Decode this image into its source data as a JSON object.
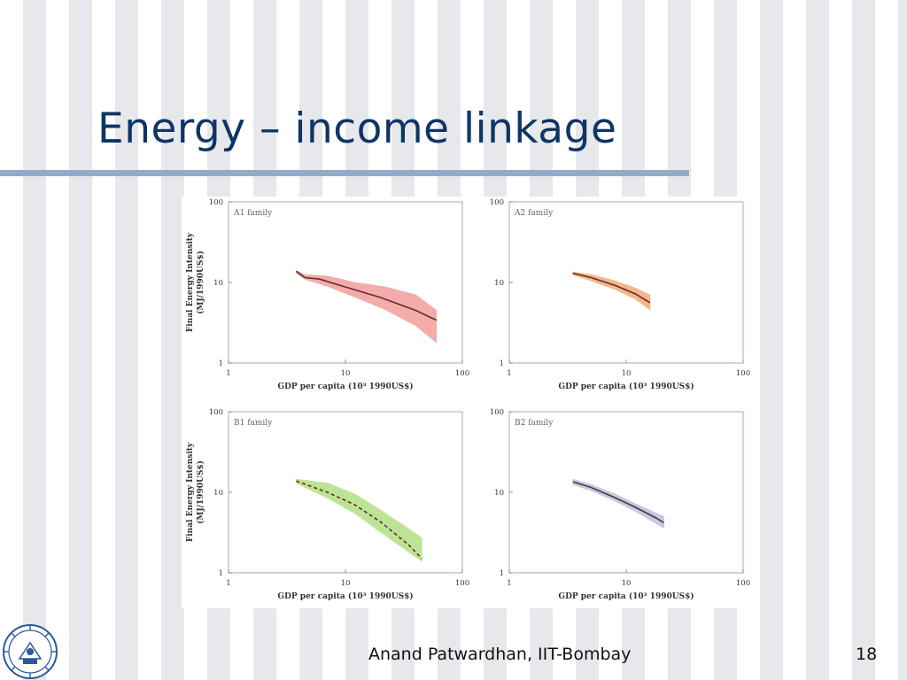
{
  "slide": {
    "title": "Energy – income linkage",
    "footer": "Anand Patwardhan, IIT-Bombay",
    "page_number": "18"
  },
  "logo": {
    "icon": "iit-bombay-seal-icon",
    "color": "#2a5a9a"
  },
  "colors": {
    "title": "#0f3566",
    "rule": "#93abc8",
    "line": "#6b2a2a"
  },
  "chart_data": [
    {
      "type": "area",
      "family_label": "A1 family",
      "xlabel": "GDP per capita (10³ 1990US$)",
      "ylabel": "Final Energy Intensity (MJ/1990US$)",
      "xscale": "log",
      "yscale": "log",
      "xlim": [
        1,
        100
      ],
      "ylim": [
        1,
        100
      ],
      "xticks": [
        "1",
        "10",
        "100"
      ],
      "yticks": [
        "1",
        "10",
        "100"
      ],
      "band_color": "#f2a3a3",
      "line_color": "#6b2a2a",
      "line_style": "solid",
      "band_upper": [
        [
          3.8,
          14
        ],
        [
          4.5,
          12.5
        ],
        [
          7,
          12
        ],
        [
          12,
          10
        ],
        [
          22,
          8.8
        ],
        [
          40,
          7
        ],
        [
          60,
          4.5
        ]
      ],
      "band_lower": [
        [
          3.8,
          13
        ],
        [
          4.5,
          11
        ],
        [
          7,
          9
        ],
        [
          12,
          6.6
        ],
        [
          22,
          4.6
        ],
        [
          40,
          2.9
        ],
        [
          60,
          1.8
        ]
      ],
      "median": [
        [
          3.8,
          13.8
        ],
        [
          4.5,
          11.5
        ],
        [
          6,
          11
        ],
        [
          10,
          8.8
        ],
        [
          20,
          6.5
        ],
        [
          40,
          4.5
        ],
        [
          60,
          3.4
        ]
      ]
    },
    {
      "type": "area",
      "family_label": "A2 family",
      "xlabel": "GDP per capita (10³ 1990US$)",
      "ylabel": "",
      "xscale": "log",
      "yscale": "log",
      "xlim": [
        1,
        100
      ],
      "ylim": [
        1,
        100
      ],
      "xticks": [
        "1",
        "10",
        "100"
      ],
      "yticks": [
        "1",
        "10",
        "100"
      ],
      "band_color": "#f4b07e",
      "line_color": "#6b2a2a",
      "line_style": "solid",
      "band_upper": [
        [
          3.5,
          13.5
        ],
        [
          5,
          12.5
        ],
        [
          8,
          10.5
        ],
        [
          12,
          8.5
        ],
        [
          16,
          7
        ]
      ],
      "band_lower": [
        [
          3.5,
          12.5
        ],
        [
          5,
          10.5
        ],
        [
          8,
          8.2
        ],
        [
          12,
          6.2
        ],
        [
          16,
          4.6
        ]
      ],
      "median": [
        [
          3.5,
          13
        ],
        [
          5,
          11.5
        ],
        [
          8,
          9.2
        ],
        [
          12,
          7.2
        ],
        [
          16,
          5.6
        ]
      ]
    },
    {
      "type": "area",
      "family_label": "B1 family",
      "xlabel": "GDP per capita (10³ 1990US$)",
      "ylabel": "Final Energy Intensity (MJ/1990US$)",
      "xscale": "log",
      "yscale": "log",
      "xlim": [
        1,
        100
      ],
      "ylim": [
        1,
        100
      ],
      "xticks": [
        "1",
        "10",
        "100"
      ],
      "yticks": [
        "1",
        "10",
        "100"
      ],
      "band_color": "#b6e28a",
      "line_color": "#6b2a2a",
      "line_style": "dashed",
      "band_upper": [
        [
          3.8,
          14.5
        ],
        [
          7,
          13
        ],
        [
          12,
          9.5
        ],
        [
          20,
          6
        ],
        [
          35,
          3.5
        ],
        [
          45,
          2.7
        ]
      ],
      "band_lower": [
        [
          3.8,
          13
        ],
        [
          7,
          8.5
        ],
        [
          12,
          5.5
        ],
        [
          20,
          3.2
        ],
        [
          35,
          1.8
        ],
        [
          45,
          1.4
        ]
      ],
      "median": [
        [
          3.8,
          13.8
        ],
        [
          7,
          10
        ],
        [
          12,
          7
        ],
        [
          20,
          4.3
        ],
        [
          35,
          2.2
        ],
        [
          45,
          1.5
        ]
      ]
    },
    {
      "type": "area",
      "family_label": "B2 family",
      "xlabel": "GDP per capita (10³ 1990US$)",
      "ylabel": "",
      "xscale": "log",
      "yscale": "log",
      "xlim": [
        1,
        100
      ],
      "ylim": [
        1,
        100
      ],
      "xticks": [
        "1",
        "10",
        "100"
      ],
      "yticks": [
        "1",
        "10",
        "100"
      ],
      "band_color": "#b9c6e6",
      "line_color": "#6b2a2a",
      "line_style": "solid",
      "band_upper": [
        [
          3.5,
          14.5
        ],
        [
          5,
          12.5
        ],
        [
          8,
          9.5
        ],
        [
          12,
          7.2
        ],
        [
          18,
          5.5
        ],
        [
          21,
          5
        ]
      ],
      "band_lower": [
        [
          3.5,
          12.5
        ],
        [
          5,
          10.5
        ],
        [
          8,
          7.8
        ],
        [
          12,
          5.8
        ],
        [
          18,
          4.1
        ],
        [
          21,
          3.6
        ]
      ],
      "median": [
        [
          3.5,
          13.5
        ],
        [
          5,
          11.5
        ],
        [
          8,
          8.6
        ],
        [
          12,
          6.5
        ],
        [
          18,
          4.8
        ],
        [
          21,
          4.2
        ]
      ]
    }
  ]
}
